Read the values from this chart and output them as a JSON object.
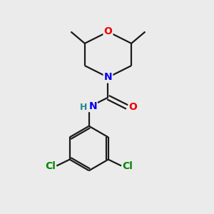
{
  "background_color": "#ebebeb",
  "bond_color": "#1a1a1a",
  "atom_colors": {
    "O": "#ee0000",
    "N": "#0000ee",
    "C": "#1a1a1a",
    "Cl": "#008800",
    "H": "#228888"
  },
  "figsize": [
    3.0,
    3.0
  ],
  "dpi": 100
}
